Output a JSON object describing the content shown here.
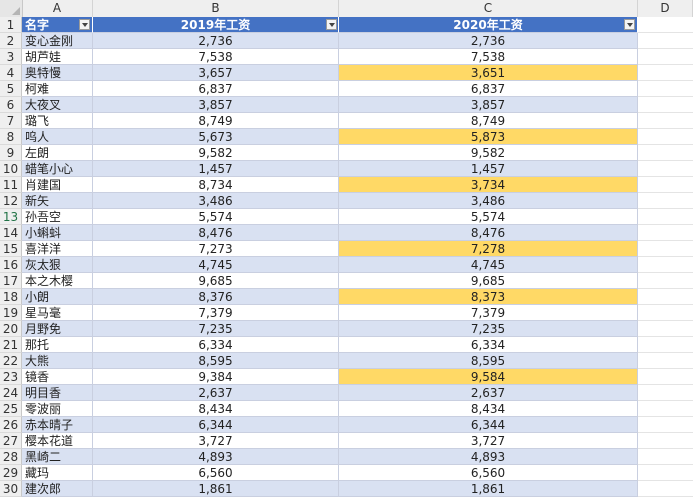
{
  "columns": {
    "A": "A",
    "B": "B",
    "C": "C",
    "D": "D"
  },
  "header": {
    "row": "1",
    "name": "名字",
    "y2019": "2019年工资",
    "y2020": "2020年工资"
  },
  "rows": [
    {
      "n": "2",
      "name": "变心金刚",
      "v19": "2,736",
      "v20": "2,736",
      "hl": false
    },
    {
      "n": "3",
      "name": "胡芦娃",
      "v19": "7,538",
      "v20": "7,538",
      "hl": false
    },
    {
      "n": "4",
      "name": "奥特慢",
      "v19": "3,657",
      "v20": "3,651",
      "hl": true
    },
    {
      "n": "5",
      "name": "柯难",
      "v19": "6,837",
      "v20": "6,837",
      "hl": false
    },
    {
      "n": "6",
      "name": "大夜叉",
      "v19": "3,857",
      "v20": "3,857",
      "hl": false
    },
    {
      "n": "7",
      "name": "璐飞",
      "v19": "8,749",
      "v20": "8,749",
      "hl": false
    },
    {
      "n": "8",
      "name": "呜人",
      "v19": "5,673",
      "v20": "5,873",
      "hl": true
    },
    {
      "n": "9",
      "name": "左朗",
      "v19": "9,582",
      "v20": "9,582",
      "hl": false
    },
    {
      "n": "10",
      "name": "蜡笔小心",
      "v19": "1,457",
      "v20": "1,457",
      "hl": false
    },
    {
      "n": "11",
      "name": "肖建国",
      "v19": "8,734",
      "v20": "3,734",
      "hl": true
    },
    {
      "n": "12",
      "name": "新矢",
      "v19": "3,486",
      "v20": "3,486",
      "hl": false
    },
    {
      "n": "13",
      "name": "孙吾空",
      "v19": "5,574",
      "v20": "5,574",
      "hl": false
    },
    {
      "n": "14",
      "name": "小蝌蚪",
      "v19": "8,476",
      "v20": "8,476",
      "hl": false
    },
    {
      "n": "15",
      "name": "喜洋洋",
      "v19": "7,273",
      "v20": "7,278",
      "hl": true
    },
    {
      "n": "16",
      "name": "灰太狠",
      "v19": "4,745",
      "v20": "4,745",
      "hl": false
    },
    {
      "n": "17",
      "name": "本之木樱",
      "v19": "9,685",
      "v20": "9,685",
      "hl": false
    },
    {
      "n": "18",
      "name": "小朗",
      "v19": "8,376",
      "v20": "8,373",
      "hl": true
    },
    {
      "n": "19",
      "name": "星马毫",
      "v19": "7,379",
      "v20": "7,379",
      "hl": false
    },
    {
      "n": "20",
      "name": "月野免",
      "v19": "7,235",
      "v20": "7,235",
      "hl": false
    },
    {
      "n": "21",
      "name": "那托",
      "v19": "6,334",
      "v20": "6,334",
      "hl": false
    },
    {
      "n": "22",
      "name": "大熊",
      "v19": "8,595",
      "v20": "8,595",
      "hl": false
    },
    {
      "n": "23",
      "name": "镜香",
      "v19": "9,384",
      "v20": "9,584",
      "hl": true
    },
    {
      "n": "24",
      "name": "明目香",
      "v19": "2,637",
      "v20": "2,637",
      "hl": false
    },
    {
      "n": "25",
      "name": "零波丽",
      "v19": "8,434",
      "v20": "8,434",
      "hl": false
    },
    {
      "n": "26",
      "name": "赤本晴子",
      "v19": "6,344",
      "v20": "6,344",
      "hl": false
    },
    {
      "n": "27",
      "name": "樱本花道",
      "v19": "3,727",
      "v20": "3,727",
      "hl": false
    },
    {
      "n": "28",
      "name": "黑崎二",
      "v19": "4,893",
      "v20": "4,893",
      "hl": false
    },
    {
      "n": "29",
      "name": "藏玛",
      "v19": "6,560",
      "v20": "6,560",
      "hl": false
    },
    {
      "n": "30",
      "name": "建次郎",
      "v19": "1,861",
      "v20": "1,861",
      "hl": false
    }
  ],
  "colors": {
    "header_bg": "#4472c4",
    "band": "#d9e1f2",
    "highlight": "#ffd966"
  },
  "selected_row": "13"
}
